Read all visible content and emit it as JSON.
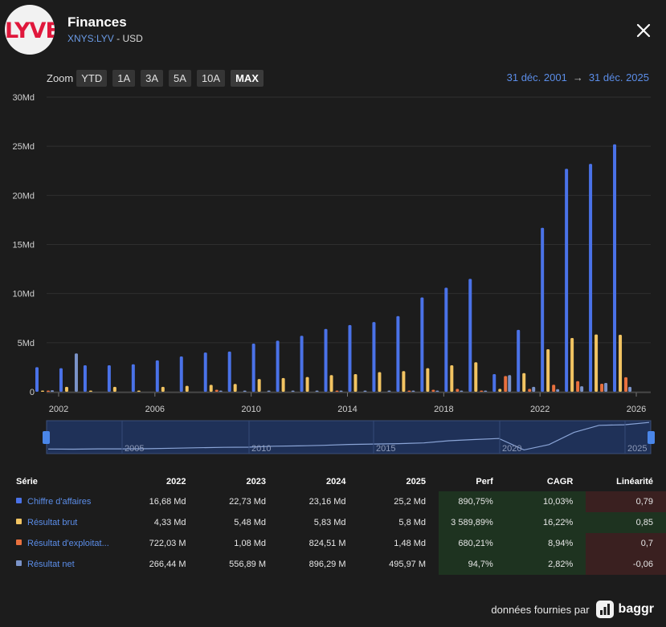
{
  "header": {
    "logo_text": "LYVE",
    "title": "Finances",
    "ticker": "XNYS:LYV",
    "currency": " - USD"
  },
  "zoom": {
    "label": "Zoom",
    "buttons": [
      "YTD",
      "1A",
      "3A",
      "5A",
      "10A",
      "MAX"
    ],
    "active": "MAX"
  },
  "range": {
    "start": "31 déc. 2001",
    "arrow": "→",
    "end": "31 déc. 2025"
  },
  "colors": {
    "revenue": "#4a72e8",
    "gross": "#f2c462",
    "operating": "#e8703e",
    "net": "#7b93c8"
  },
  "chart_data": {
    "type": "bar",
    "title": "",
    "ylabel": "",
    "ylim": [
      0,
      30
    ],
    "y_ticks": [
      "0",
      "5Md",
      "10Md",
      "15Md",
      "20Md",
      "25Md",
      "30Md"
    ],
    "x_ticks": [
      "2002",
      "2006",
      "2010",
      "2014",
      "2018",
      "2022",
      "2026"
    ],
    "years": [
      2001,
      2002,
      2003,
      2004,
      2005,
      2006,
      2007,
      2008,
      2009,
      2010,
      2011,
      2012,
      2013,
      2014,
      2015,
      2016,
      2017,
      2018,
      2019,
      2020,
      2021,
      2022,
      2023,
      2024,
      2025
    ],
    "series": [
      {
        "name": "Chiffre d'affaires",
        "values": [
          2.5,
          2.4,
          2.7,
          2.7,
          2.8,
          3.2,
          3.6,
          4.0,
          4.1,
          4.9,
          5.2,
          5.7,
          6.4,
          6.8,
          7.1,
          7.7,
          9.6,
          10.6,
          11.5,
          1.8,
          6.3,
          16.7,
          22.7,
          23.2,
          25.2
        ]
      },
      {
        "name": "Résultat brut",
        "values": [
          0.1,
          0.5,
          0.1,
          0.5,
          0.1,
          0.5,
          0.6,
          0.7,
          0.8,
          1.3,
          1.4,
          1.5,
          1.7,
          1.8,
          2.0,
          2.1,
          2.4,
          2.7,
          3.0,
          0.3,
          1.9,
          4.33,
          5.48,
          5.83,
          5.8
        ]
      },
      {
        "name": "Résultat d'exploitation",
        "values": [
          0.1,
          0.0,
          0.0,
          0.0,
          0.0,
          0.0,
          0.0,
          0.2,
          0.0,
          0.0,
          0.0,
          0.0,
          0.1,
          0.0,
          0.0,
          0.1,
          0.2,
          0.3,
          0.1,
          1.6,
          0.3,
          0.72,
          1.08,
          0.82,
          1.48
        ]
      },
      {
        "name": "Résultat net",
        "values": [
          0.15,
          3.9,
          0.0,
          0.0,
          0.0,
          0.0,
          0.0,
          0.1,
          0.1,
          0.1,
          0.1,
          0.1,
          0.1,
          0.1,
          0.1,
          0.1,
          0.1,
          0.1,
          0.1,
          1.7,
          0.5,
          0.27,
          0.56,
          0.9,
          0.5
        ]
      }
    ]
  },
  "navigator": {
    "labels": [
      "2005",
      "2010",
      "2015",
      "2020",
      "2025"
    ]
  },
  "table": {
    "headers": [
      "Série",
      "2022",
      "2023",
      "2024",
      "2025",
      "Perf",
      "CAGR",
      "Linéarité"
    ],
    "rows": [
      {
        "name": "Chiffre d'affaires",
        "v2022": "16,68 Md",
        "v2023": "22,73 Md",
        "v2024": "23,16 Md",
        "v2025": "25,2 Md",
        "perf": "890,75%",
        "cagr": "10,03%",
        "lin": "0,79"
      },
      {
        "name": "Résultat brut",
        "v2022": "4,33 Md",
        "v2023": "5,48 Md",
        "v2024": "5,83 Md",
        "v2025": "5,8 Md",
        "perf": "3 589,89%",
        "cagr": "16,22%",
        "lin": "0,85"
      },
      {
        "name": "Résultat d'exploitat...",
        "v2022": "722,03 M",
        "v2023": "1,08 Md",
        "v2024": "824,51 M",
        "v2025": "1,48 Md",
        "perf": "680,21%",
        "cagr": "8,94%",
        "lin": "0,7"
      },
      {
        "name": "Résultat net",
        "v2022": "266,44 M",
        "v2023": "556,89 M",
        "v2024": "896,29 M",
        "v2025": "495,97 M",
        "perf": "94,7%",
        "cagr": "2,82%",
        "lin": "-0,06"
      }
    ]
  },
  "footer": {
    "text": "données fournies par",
    "brand": "baggr"
  }
}
